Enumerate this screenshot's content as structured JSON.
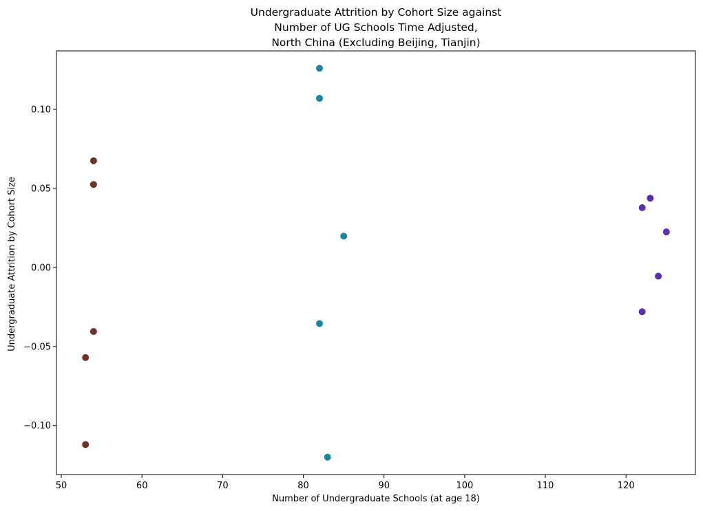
{
  "chart_data": {
    "type": "scatter",
    "title": [
      "Undergraduate Attrition by Cohort Size against",
      "Number of UG Schools Time Adjusted,",
      "North China (Excluding Beijing, Tianjin)"
    ],
    "xlabel": "Number of Undergraduate Schools (at age 18)",
    "ylabel": "Undergraduate Attrition by Cohort Size",
    "xlim": [
      49.4,
      128.6
    ],
    "ylim": [
      -0.131,
      0.137
    ],
    "xticks": [
      50,
      60,
      70,
      80,
      90,
      100,
      110,
      120
    ],
    "xtick_labels": [
      "50",
      "60",
      "70",
      "80",
      "90",
      "100",
      "110",
      "120"
    ],
    "yticks": [
      -0.1,
      -0.05,
      0.0,
      0.05,
      0.1
    ],
    "ytick_labels": [
      "−0.10",
      "−0.05",
      "0.00",
      "0.05",
      "0.10"
    ],
    "grid": false,
    "series": [
      {
        "color": "#6b3427",
        "points": [
          {
            "x": 54,
            "y": 0.0675
          },
          {
            "x": 54,
            "y": 0.0525
          },
          {
            "x": 54,
            "y": -0.0405
          },
          {
            "x": 53,
            "y": -0.057
          },
          {
            "x": 53,
            "y": -0.112
          }
        ]
      },
      {
        "color": "#1a87a0",
        "points": [
          {
            "x": 82,
            "y": 0.126
          },
          {
            "x": 82,
            "y": 0.107
          },
          {
            "x": 85,
            "y": 0.0198
          },
          {
            "x": 82,
            "y": -0.0355
          },
          {
            "x": 83,
            "y": -0.12
          }
        ]
      },
      {
        "color": "#5b2fb0",
        "points": [
          {
            "x": 123,
            "y": 0.0438
          },
          {
            "x": 122,
            "y": 0.0378
          },
          {
            "x": 125,
            "y": 0.0225
          },
          {
            "x": 124,
            "y": -0.0055
          },
          {
            "x": 122,
            "y": -0.028
          }
        ]
      }
    ]
  }
}
